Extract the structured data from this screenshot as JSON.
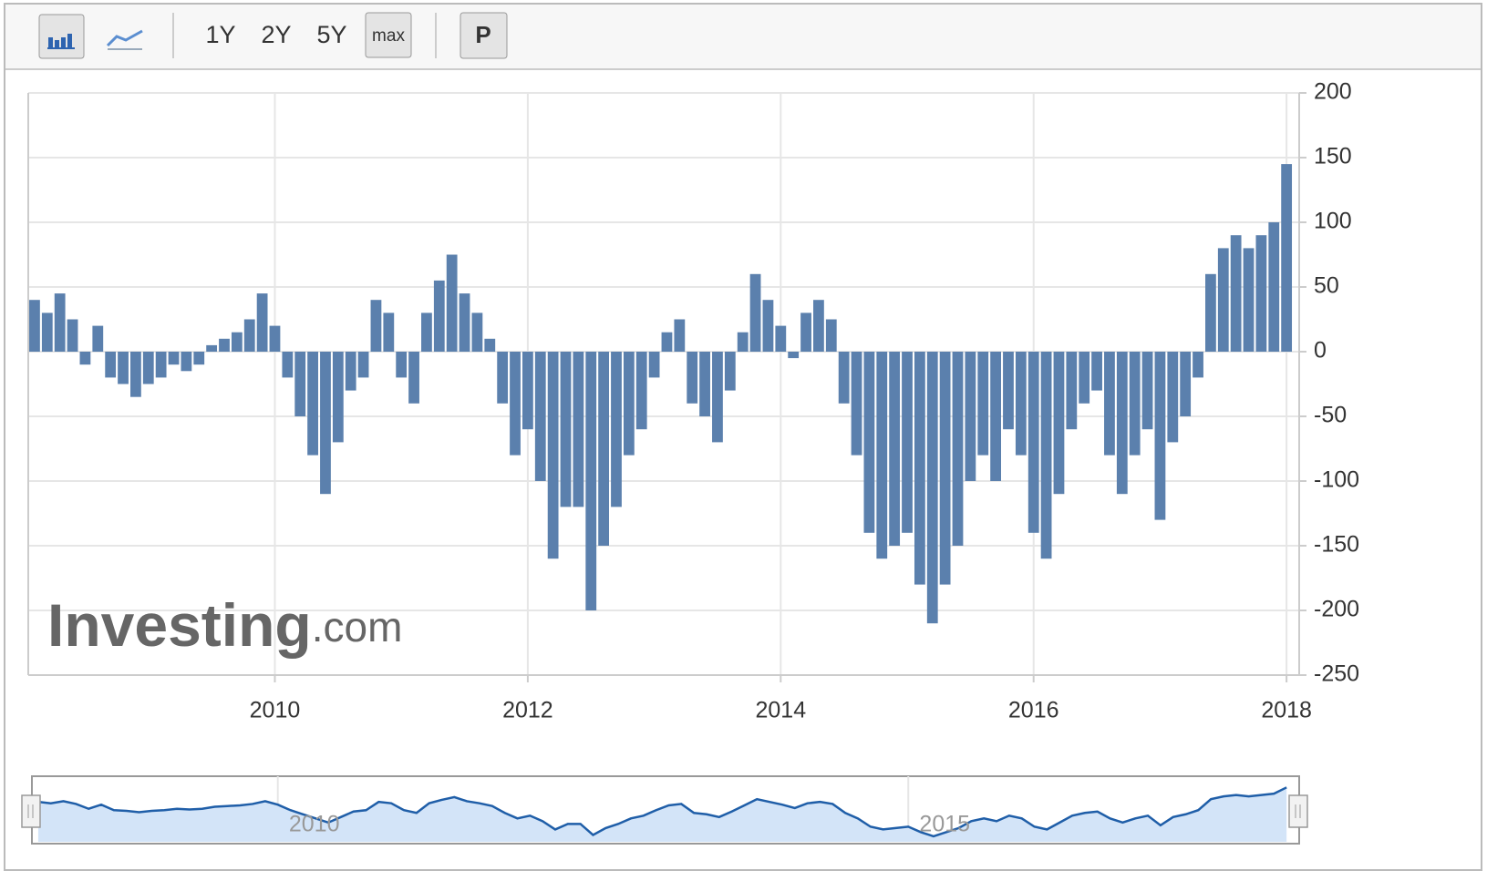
{
  "toolbar": {
    "buttons": [
      "1Y",
      "2Y",
      "5Y",
      "max",
      "P"
    ]
  },
  "chart_data": {
    "type": "bar",
    "watermark": {
      "brand": "Investing",
      "suffix": ".com"
    },
    "color": "#5b80ad",
    "x": [
      2008.1,
      2008.2,
      2008.3,
      2008.4,
      2008.5,
      2008.6,
      2008.7,
      2008.8,
      2008.9,
      2009.0,
      2009.1,
      2009.2,
      2009.3,
      2009.4,
      2009.5,
      2009.6,
      2009.7,
      2009.8,
      2009.9,
      2010.0,
      2010.1,
      2010.2,
      2010.3,
      2010.4,
      2010.5,
      2010.6,
      2010.7,
      2010.8,
      2010.9,
      2011.0,
      2011.1,
      2011.2,
      2011.3,
      2011.4,
      2011.5,
      2011.6,
      2011.7,
      2011.8,
      2011.9,
      2012.0,
      2012.1,
      2012.2,
      2012.3,
      2012.4,
      2012.5,
      2012.6,
      2012.7,
      2012.8,
      2012.9,
      2013.0,
      2013.1,
      2013.2,
      2013.3,
      2013.4,
      2013.5,
      2013.6,
      2013.7,
      2013.8,
      2013.9,
      2014.0,
      2014.1,
      2014.2,
      2014.3,
      2014.4,
      2014.5,
      2014.6,
      2014.7,
      2014.8,
      2014.9,
      2015.0,
      2015.1,
      2015.2,
      2015.3,
      2015.4,
      2015.5,
      2015.6,
      2015.7,
      2015.8,
      2015.9,
      2016.0,
      2016.1,
      2016.2,
      2016.3,
      2016.4,
      2016.5,
      2016.6,
      2016.7,
      2016.8,
      2016.9,
      2017.0,
      2017.1,
      2017.2,
      2017.3,
      2017.4,
      2017.5,
      2017.6,
      2017.7,
      2017.8,
      2017.9,
      2018.0
    ],
    "values": [
      40,
      30,
      45,
      25,
      -10,
      20,
      -20,
      -25,
      -35,
      -25,
      -20,
      -10,
      -15,
      -10,
      5,
      10,
      15,
      25,
      45,
      20,
      -20,
      -50,
      -80,
      -110,
      -70,
      -30,
      -20,
      40,
      30,
      -20,
      -40,
      30,
      55,
      75,
      45,
      30,
      10,
      -40,
      -80,
      -60,
      -100,
      -160,
      -120,
      -120,
      -200,
      -150,
      -120,
      -80,
      -60,
      -20,
      15,
      25,
      -40,
      -50,
      -70,
      -30,
      15,
      60,
      40,
      20,
      -5,
      30,
      40,
      25,
      -40,
      -80,
      -140,
      -160,
      -150,
      -140,
      -180,
      -210,
      -180,
      -150,
      -100,
      -80,
      -100,
      -60,
      -80,
      -140,
      -160,
      -110,
      -60,
      -40,
      -30,
      -80,
      -110,
      -80,
      -60,
      -130,
      -70,
      -50,
      -20,
      60,
      80,
      90,
      80,
      90,
      100,
      145
    ],
    "xlim": [
      2008.05,
      2018.1
    ],
    "xticks": [
      2010,
      2012,
      2014,
      2016,
      2018
    ],
    "ylim": [
      -250,
      200
    ],
    "yticks": [
      -250,
      -200,
      -150,
      -100,
      -50,
      0,
      50,
      100,
      150,
      200
    ],
    "grid": true,
    "navigator": {
      "xticks": [
        2010,
        2015
      ],
      "color": "#1f5ea8"
    }
  }
}
